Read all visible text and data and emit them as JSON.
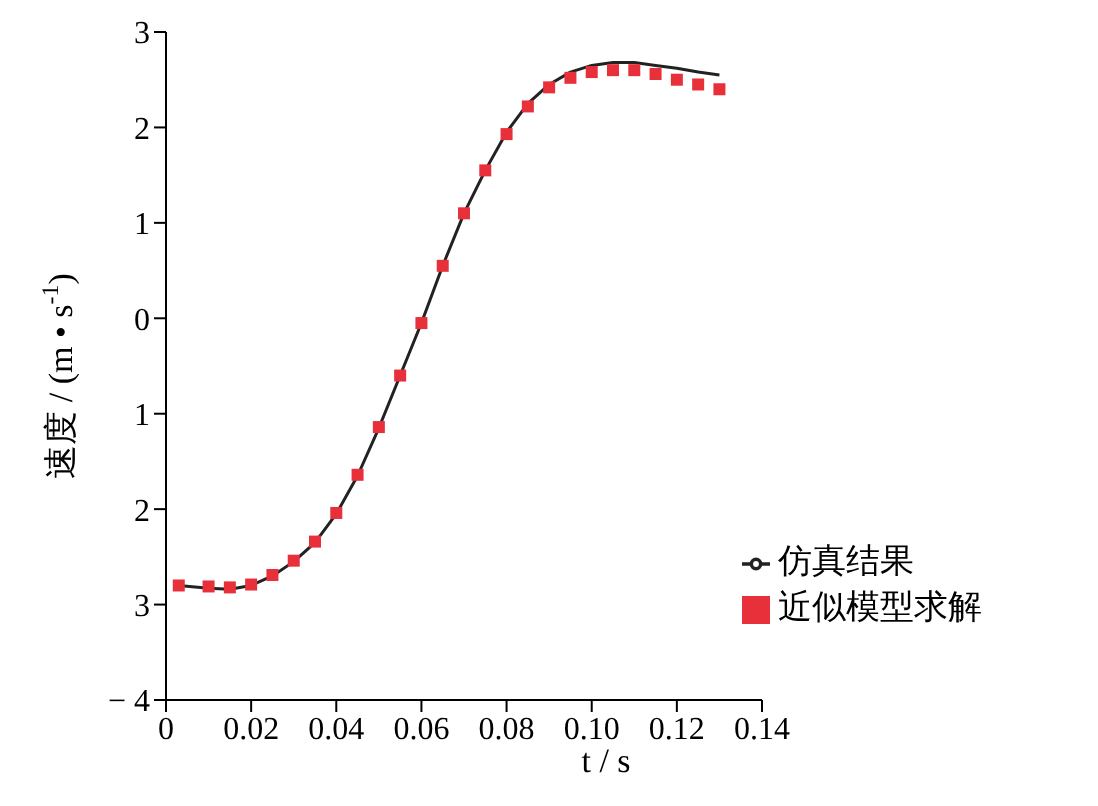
{
  "chart_data": {
    "type": "line",
    "xlabel": "t / s",
    "ylabel": "速度 / (m • s$^{-1}$)",
    "xlim": [
      0,
      0.14
    ],
    "xticks": [
      0,
      {
        "value": 0.02,
        "label": "0.02"
      },
      {
        "value": 0.04,
        "label": "0.04"
      },
      {
        "value": 0.06,
        "label": "0.06"
      },
      {
        "value": 0.08,
        "label": "0.08"
      },
      {
        "value": 0.1,
        "label": "0.10"
      },
      {
        "value": 0.12,
        "label": "0.12"
      },
      {
        "value": 0.14,
        "label": "0.14"
      }
    ],
    "ylim": [
      -4,
      3
    ],
    "yticks": [
      {
        "value": -4,
        "label": "− 4"
      },
      {
        "value": -3,
        "label": "3"
      },
      {
        "value": -2,
        "label": "2"
      },
      {
        "value": -1,
        "label": "1"
      },
      0,
      1,
      2,
      3
    ],
    "grid": false,
    "legend": "bottom right",
    "series": [
      {
        "name": "仿真结果",
        "type": "line",
        "color": "#222222",
        "marker": "none",
        "x": [
          0.003,
          0.01,
          0.015,
          0.02,
          0.025,
          0.03,
          0.035,
          0.04,
          0.045,
          0.05,
          0.055,
          0.06,
          0.065,
          0.07,
          0.075,
          0.08,
          0.085,
          0.09,
          0.095,
          0.1,
          0.105,
          0.11,
          0.115,
          0.12,
          0.125,
          0.13
        ],
        "values": [
          -2.8,
          -2.83,
          -2.84,
          -2.8,
          -2.7,
          -2.55,
          -2.35,
          -2.05,
          -1.65,
          -1.15,
          -0.6,
          -0.05,
          0.55,
          1.1,
          1.55,
          1.95,
          2.25,
          2.45,
          2.58,
          2.65,
          2.68,
          2.68,
          2.65,
          2.62,
          2.58,
          2.55
        ]
      },
      {
        "name": "近似模型求解",
        "type": "scatter",
        "color": "#e8303a",
        "marker": "square",
        "x": [
          0.003,
          0.01,
          0.015,
          0.02,
          0.025,
          0.03,
          0.035,
          0.04,
          0.045,
          0.05,
          0.055,
          0.06,
          0.065,
          0.07,
          0.075,
          0.08,
          0.085,
          0.09,
          0.095,
          0.1,
          0.105,
          0.11,
          0.115,
          0.12,
          0.125,
          0.13
        ],
        "values": [
          -2.8,
          -2.81,
          -2.82,
          -2.79,
          -2.69,
          -2.54,
          -2.34,
          -2.04,
          -1.64,
          -1.14,
          -0.6,
          -0.05,
          0.55,
          1.1,
          1.55,
          1.93,
          2.22,
          2.42,
          2.52,
          2.58,
          2.6,
          2.6,
          2.56,
          2.5,
          2.45,
          2.4
        ]
      }
    ]
  }
}
